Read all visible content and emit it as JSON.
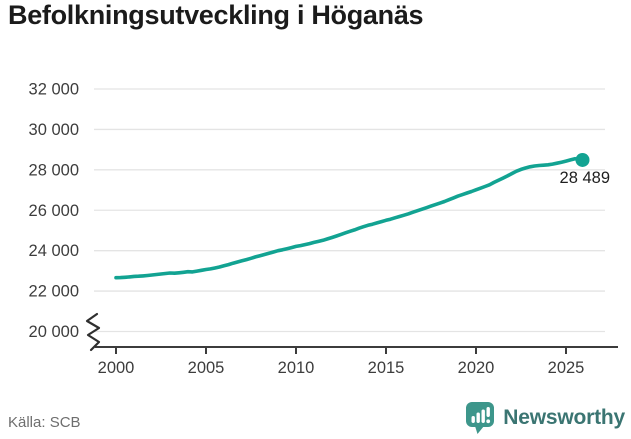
{
  "title": "Befolkningsutveckling i Höganäs",
  "source": "Källa: SCB",
  "logo": {
    "text": "Newsworthy",
    "icon": "newsworthy-chart-bubble-icon"
  },
  "colors": {
    "line": "#12a392",
    "grid": "#e4e4e4",
    "axis": "#3c3c3c",
    "tick_text": "#3d3d3d",
    "title_text": "#1b1b1b",
    "annotation_text": "#1e1e1e",
    "source_text": "#6e6e6e",
    "logo_teal": "#3d968b",
    "logo_text": "#3b7572"
  },
  "chart_data": {
    "type": "line",
    "title": "Befolkningsutveckling i Höganäs",
    "xlabel": "",
    "ylabel": "",
    "x_start": 2000,
    "x_step": 0.25,
    "xlim": [
      1999.5,
      2026.5
    ],
    "ylim": [
      20000,
      32000
    ],
    "grid": true,
    "axis_break_at_bottom": true,
    "legend_position": "none",
    "x_ticks": [
      2000,
      2005,
      2010,
      2015,
      2020,
      2025
    ],
    "y_ticks": [
      {
        "value": 20000,
        "label": "20 000"
      },
      {
        "value": 22000,
        "label": "22 000"
      },
      {
        "value": 24000,
        "label": "24 000"
      },
      {
        "value": 26000,
        "label": "26 000"
      },
      {
        "value": 28000,
        "label": "28 000"
      },
      {
        "value": 30000,
        "label": "30 000"
      },
      {
        "value": 32000,
        "label": "32 000"
      }
    ],
    "end_label": "28 489",
    "end_value": 28489,
    "series": [
      {
        "name": "befolkning",
        "values": [
          22660,
          22665,
          22680,
          22700,
          22725,
          22735,
          22750,
          22770,
          22795,
          22820,
          22845,
          22870,
          22895,
          22885,
          22905,
          22930,
          22960,
          22950,
          22990,
          23030,
          23070,
          23100,
          23140,
          23190,
          23250,
          23310,
          23380,
          23440,
          23500,
          23560,
          23620,
          23690,
          23750,
          23810,
          23870,
          23935,
          24000,
          24045,
          24095,
          24150,
          24210,
          24250,
          24300,
          24350,
          24410,
          24460,
          24515,
          24580,
          24650,
          24725,
          24805,
          24885,
          24960,
          25030,
          25110,
          25185,
          25255,
          25310,
          25375,
          25440,
          25505,
          25555,
          25625,
          25690,
          25755,
          25825,
          25905,
          25980,
          26050,
          26125,
          26205,
          26280,
          26355,
          26435,
          26520,
          26610,
          26700,
          26775,
          26855,
          26930,
          27010,
          27090,
          27175,
          27260,
          27380,
          27480,
          27590,
          27700,
          27820,
          27930,
          28020,
          28090,
          28150,
          28190,
          28215,
          28230,
          28250,
          28285,
          28330,
          28380,
          28430,
          28490,
          28550,
          28489
        ]
      }
    ]
  }
}
